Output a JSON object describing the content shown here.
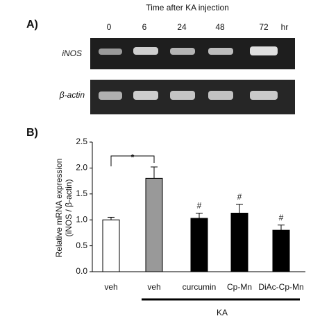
{
  "panel_a": {
    "label": "A)",
    "title": "Time after KA injection",
    "time_labels": [
      "0",
      "6",
      "24",
      "48",
      "72"
    ],
    "unit": "hr",
    "row_labels": [
      "iNOS",
      "β-actin"
    ]
  },
  "chart_data": {
    "type": "bar",
    "label": "B)",
    "ylabel": [
      "Relative mRNA expression",
      "(iNOS / β-actin)"
    ],
    "categories": [
      "veh",
      "veh",
      "curcumin",
      "Cp-Mn",
      "DiAc-Cp-Mn"
    ],
    "values": [
      1.0,
      1.8,
      1.03,
      1.13,
      0.8
    ],
    "errors": [
      0.05,
      0.22,
      0.1,
      0.17,
      0.1
    ],
    "colors": [
      "#ffffff",
      "#999999",
      "#000000",
      "#000000",
      "#000000"
    ],
    "bar_marks": [
      null,
      null,
      "#",
      "#",
      "#"
    ],
    "bracket_label": "*",
    "group_label": "KA",
    "ylim": [
      0,
      2.5
    ],
    "yticks": [
      {
        "value": 0,
        "label": "0.0"
      },
      0.5,
      {
        "value": 1,
        "label": "1.0"
      },
      1.5,
      {
        "value": 2,
        "label": "2.0"
      },
      2.5
    ]
  }
}
